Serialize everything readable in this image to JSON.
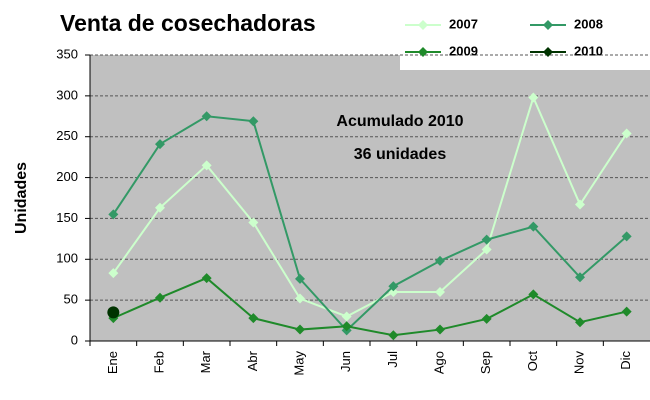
{
  "chart_data": {
    "type": "line",
    "title": "Venta de cosechadoras",
    "y_label": "Unidades",
    "annotations": [
      "Acumulado 2010",
      "36 unidades"
    ],
    "categories": [
      "Ene",
      "Feb",
      "Mar",
      "Abr",
      "May",
      "Jun",
      "Jul",
      "Ago",
      "Sep",
      "Oct",
      "Nov",
      "Dic"
    ],
    "series": [
      {
        "name": "2007",
        "color": "#ccffcc",
        "marker": "diamond",
        "values": [
          83,
          163,
          215,
          145,
          52,
          30,
          60,
          60,
          112,
          298,
          167,
          254
        ]
      },
      {
        "name": "2008",
        "color": "#339966",
        "marker": "diamond",
        "values": [
          155,
          241,
          275,
          269,
          76,
          13,
          67,
          98,
          124,
          140,
          78,
          128
        ]
      },
      {
        "name": "2009",
        "color": "#1f8a2a",
        "marker": "diamond",
        "values": [
          28,
          53,
          77,
          28,
          14,
          18,
          7,
          14,
          27,
          57,
          23,
          36
        ]
      },
      {
        "name": "2010",
        "color": "#003300",
        "marker": "circle",
        "values": [
          35,
          null,
          null,
          null,
          null,
          null,
          null,
          null,
          null,
          null,
          null,
          null
        ]
      }
    ],
    "ylim": [
      0,
      350
    ],
    "yticks": [
      0,
      50,
      100,
      150,
      200,
      250,
      300,
      350
    ],
    "grid": true
  }
}
